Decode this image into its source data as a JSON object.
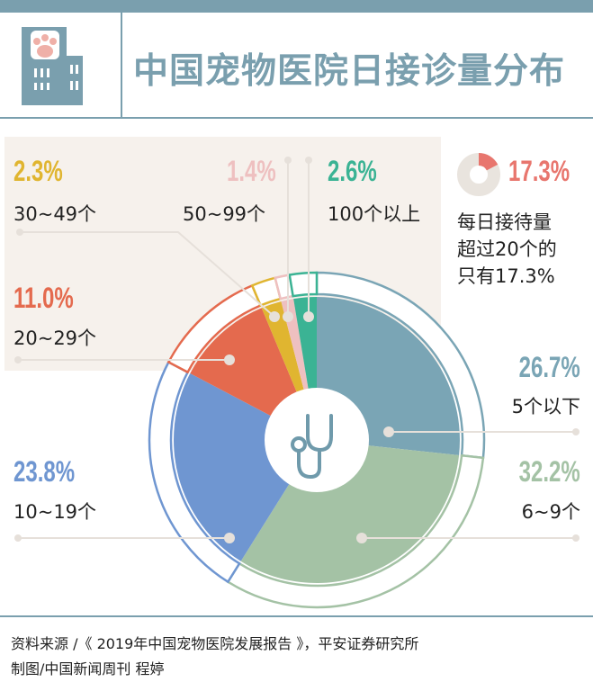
{
  "header": {
    "title": "中国宠物医院日接诊量分布",
    "icon": "pet-hospital-building-icon"
  },
  "chart_data": {
    "type": "pie",
    "title": "中国宠物医院日接诊量分布",
    "donut": true,
    "start": "12 o'clock, clockwise",
    "categories": [
      "5个以下",
      "6~9个",
      "10~19个",
      "20~29个",
      "30~49个",
      "50~99个",
      "100个以上"
    ],
    "values": [
      26.7,
      32.2,
      23.8,
      11.0,
      2.3,
      1.4,
      2.6
    ],
    "labels": [
      "26.7%",
      "32.2%",
      "23.8%",
      "11.0%",
      "2.3%",
      "1.4%",
      "2.6%"
    ],
    "colors": [
      "#7aa5b5",
      "#a4c2a5",
      "#6f96d1",
      "#e46a4e",
      "#e0b530",
      "#eec0c0",
      "#3bb394"
    ],
    "center_icon": "stethoscope-icon"
  },
  "callout": {
    "value": "17.3%",
    "fraction": 17.3,
    "color": "#e8766e",
    "text_lines": [
      "每日接待量",
      "超过20个的",
      "只有17.3%"
    ]
  },
  "footer": {
    "source": "资料来源 /《 2019年中国宠物医院发展报告 》，平安证券研究所",
    "credit": "制图/中国新闻周刊 程婷"
  }
}
